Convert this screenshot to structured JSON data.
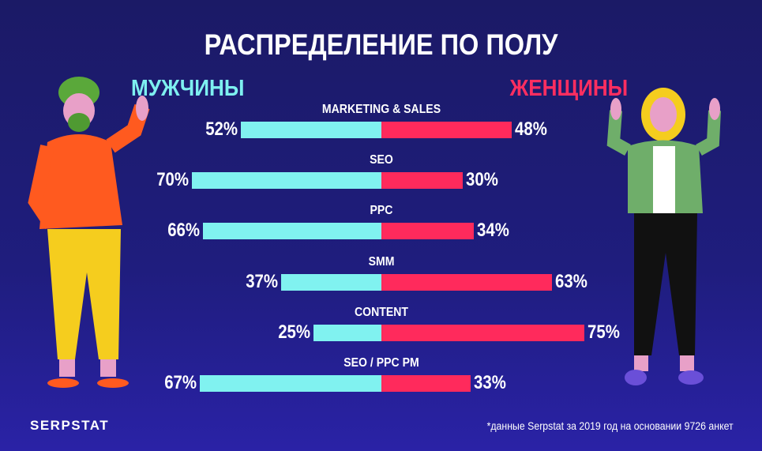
{
  "title": "РАСПРЕДЕЛЕНИЕ ПО ПОЛУ",
  "chart_data": {
    "type": "bar",
    "orientation": "horizontal-diverging",
    "title": "РАСПРЕДЕЛЕНИЕ ПО ПОЛУ",
    "categories": [
      "MARKETING & SALES",
      "SEO",
      "PPC",
      "SMM",
      "CONTENT",
      "SEO / PPC PM"
    ],
    "series": [
      {
        "name": "МУЖЧИНЫ",
        "color": "#80f2f0",
        "values": [
          52,
          70,
          66,
          37,
          25,
          67
        ]
      },
      {
        "name": "ЖЕНЩИНЫ",
        "color": "#ff2a5c",
        "values": [
          48,
          30,
          34,
          63,
          75,
          33
        ]
      }
    ],
    "unit": "%"
  },
  "footer": {
    "logo": "SERPSTAT",
    "note": "*данные Serpstat за 2019 год на основании 9726 анкет"
  }
}
